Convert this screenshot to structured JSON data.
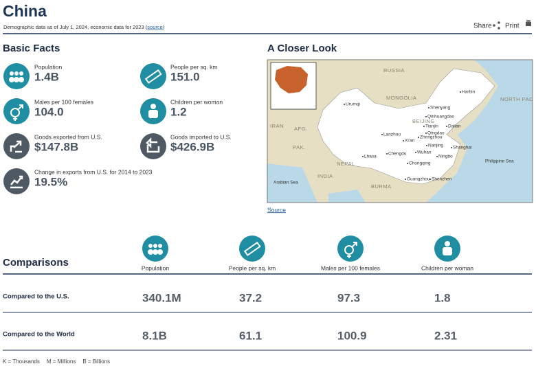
{
  "header": {
    "title": "China",
    "subtitle": "Demographic data as of July 1, 2024, economic data for 2023 (",
    "subtitle_link": "source",
    "subtitle_end": ")",
    "actions": [
      "Share",
      "Print"
    ]
  },
  "basic_facts": {
    "title": "Basic Facts",
    "items": [
      {
        "label": "Population",
        "value": "1.4B"
      },
      {
        "label": "People per sq. km",
        "value": "151.0"
      },
      {
        "label": "Males per 100 females",
        "value": "104.0"
      },
      {
        "label": "Children per woman",
        "value": "1.2"
      },
      {
        "label": "Goods exported from U.S.",
        "value": "$147.8B"
      },
      {
        "label": "Goods imported to U.S.",
        "value": "$426.9B"
      },
      {
        "label": "Change in exports from U.S. for 2014 to 2023",
        "value": "19.5%"
      }
    ]
  },
  "closer_look": {
    "title": "A Closer Look",
    "source": "Source",
    "map_labels": [
      "RUSSIA",
      "MONGOLIA",
      "Harbin",
      "Shenyang",
      "Qinhuangdao",
      "BEIJING",
      "Tianjin",
      "Dalian",
      "Qingdao",
      "Urumqi",
      "Lanzhou",
      "Xi'an",
      "Zhengzhou",
      "Nanjing",
      "Shanghai",
      "Wuhan",
      "Ningbo",
      "Chengdu",
      "Chongqing",
      "Lhasa",
      "Guangzhou",
      "Shenzhen",
      "INDIA",
      "IRAN",
      "AFG.",
      "PAK.",
      "NEPAL",
      "BURMA",
      "Philippine Sea",
      "NORTH PACIFIC OCEAN",
      "Arabian Sea"
    ]
  },
  "comparisons": {
    "title": "Comparisons",
    "columns": [
      "Population",
      "People per sq. km",
      "Males per 100 females",
      "Children per woman"
    ],
    "rows": [
      {
        "label": "Compared to the U.S.",
        "values": [
          "340.1M",
          "37.2",
          "97.3",
          "1.8"
        ]
      },
      {
        "label": "Compared to the World",
        "values": [
          "8.1B",
          "61.1",
          "100.9",
          "2.31"
        ]
      }
    ]
  },
  "footer": [
    "K = Thousands",
    "M = Millions",
    "B = Billions"
  ]
}
